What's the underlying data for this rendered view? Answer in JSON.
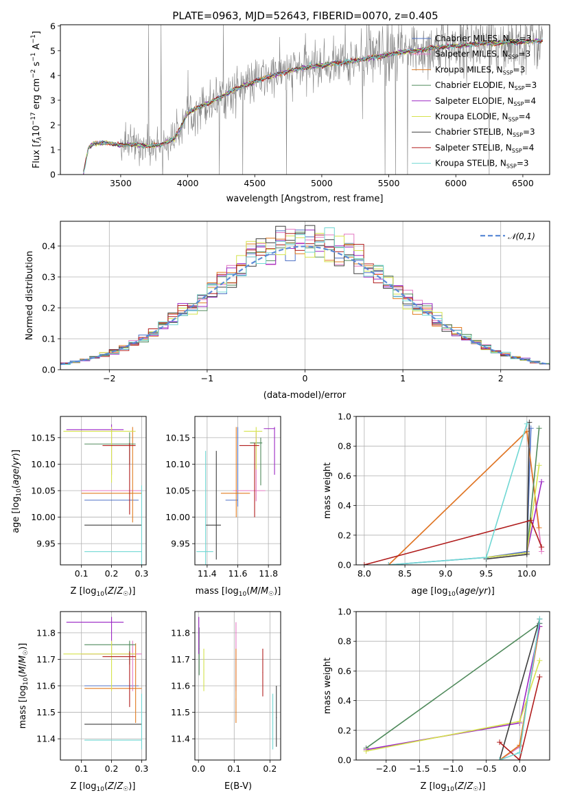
{
  "figure": {
    "title": "PLATE=0963, MJD=52643, FIBERID=0070, z=0.405"
  },
  "models": [
    {
      "name": "Chabrier MILES",
      "nssp": "3",
      "color": "#4f72c6"
    },
    {
      "name": "Salpeter MILES",
      "nssp": "3",
      "color": "#e377c2"
    },
    {
      "name": "Kroupa MILES",
      "nssp": "3",
      "color": "#e07a1f"
    },
    {
      "name": "Chabrier ELODIE",
      "nssp": "3",
      "color": "#4f8a5b"
    },
    {
      "name": "Salpeter ELODIE",
      "nssp": "4",
      "color": "#9b27c4"
    },
    {
      "name": "Kroupa ELODIE",
      "nssp": "4",
      "color": "#d4e24a"
    },
    {
      "name": "Chabrier STELIB",
      "nssp": "3",
      "color": "#3d3d3d"
    },
    {
      "name": "Salpeter STELIB",
      "nssp": "4",
      "color": "#b01c1c"
    },
    {
      "name": "Kroupa STELIB",
      "nssp": "3",
      "color": "#6fd7d3"
    }
  ],
  "chart_data": [
    {
      "id": "spectrum",
      "type": "line",
      "xlabel": "wavelength [Angstrom, rest frame]",
      "ylabel": "Flux [f_λ 10^-17 erg cm^-2 s^-1 A^-1]",
      "xlim": [
        3050,
        6700
      ],
      "ylim": [
        0,
        6.05
      ],
      "xticks": [
        3500,
        4000,
        4500,
        5000,
        5500,
        6000,
        6500
      ],
      "yticks": [
        0,
        1,
        2,
        3,
        4,
        5,
        6
      ],
      "data_color": "#808080",
      "model_continuum": {
        "x": [
          3220,
          3260,
          3300,
          3400,
          3500,
          3600,
          3700,
          3800,
          3900,
          3950,
          4000,
          4100,
          4200,
          4300,
          4400,
          4500,
          4600,
          4700,
          4800,
          4900,
          5000,
          5100,
          5200,
          5300,
          5400,
          5500,
          5600,
          5700,
          5800,
          5900,
          6000,
          6100,
          6200,
          6300,
          6400,
          6500,
          6600
        ],
        "y": [
          0,
          1.1,
          1.25,
          1.28,
          1.18,
          1.22,
          1.15,
          1.2,
          1.45,
          1.9,
          2.5,
          2.75,
          3.0,
          3.3,
          3.55,
          3.75,
          3.95,
          4.1,
          4.25,
          4.35,
          4.4,
          4.5,
          4.55,
          4.65,
          4.75,
          4.85,
          4.95,
          5.0,
          5.1,
          5.15,
          5.2,
          5.25,
          5.3,
          5.3,
          5.35,
          5.35,
          5.4
        ]
      }
    },
    {
      "id": "residuals",
      "type": "line",
      "xlabel": "(data-model)/error",
      "ylabel": "Normed distribution",
      "xlim": [
        -2.5,
        2.5
      ],
      "ylim": [
        0,
        0.48
      ],
      "xticks": [
        -2,
        -1,
        0,
        1,
        2
      ],
      "yticks": [
        0.0,
        0.1,
        0.2,
        0.3,
        0.4
      ],
      "legend": "𝒩(0,1)",
      "gaussian_color": "#5b8ad6",
      "bin_width": 0.1
    },
    {
      "id": "age-vs-Z",
      "type": "scatter",
      "xlabel": "Z [log10(Z/Z☉)]",
      "ylabel": "age  [log10(age/yr)]",
      "xlim": [
        0.03,
        0.315
      ],
      "ylim": [
        9.91,
        10.19
      ],
      "xticks": [
        0.1,
        0.2,
        0.3
      ],
      "yticks": [
        9.95,
        10.0,
        10.05,
        10.1,
        10.15
      ],
      "points": [
        {
          "model": 0,
          "x": 0.2,
          "y": 10.032,
          "xerr": [
            0.11,
            0.29
          ]
        },
        {
          "model": 1,
          "x": 0.2,
          "y": 10.05,
          "xerr": [
            0.1,
            0.3
          ]
        },
        {
          "model": 2,
          "x": 0.27,
          "y": 10.045,
          "xerr": [
            0.1,
            0.3
          ],
          "yerr": [
            9.99,
            10.17
          ]
        },
        {
          "model": 3,
          "x": 0.26,
          "y": 10.138,
          "xerr": [
            0.11,
            0.28
          ],
          "yerr": [
            10.1,
            10.16
          ]
        },
        {
          "model": 4,
          "x": 0.2,
          "y": 10.165,
          "xerr": [
            0.05,
            0.24
          ],
          "yerr": [
            10.08,
            10.175
          ]
        },
        {
          "model": 5,
          "x": 0.2,
          "y": 10.162,
          "xerr": [
            0.04,
            0.28
          ],
          "yerr": [
            10.065,
            10.17
          ]
        },
        {
          "model": 6,
          "x": 0.2,
          "y": 9.985,
          "xerr": [
            0.11,
            0.3
          ]
        },
        {
          "model": 7,
          "x": 0.26,
          "y": 10.135,
          "xerr": [
            0.17,
            0.28
          ],
          "yerr": [
            10.005,
            10.14
          ]
        },
        {
          "model": 8,
          "x": 0.3,
          "y": 9.935,
          "xerr": [
            0.11,
            0.3
          ],
          "yerr": [
            9.91,
            10.06
          ]
        }
      ]
    },
    {
      "id": "age-vs-mass",
      "type": "scatter",
      "xlabel": "mass [log10(M/M☉)]",
      "ylabel": "",
      "xlim": [
        11.32,
        11.88
      ],
      "ylim": [
        9.91,
        10.19
      ],
      "xticks": [
        11.4,
        11.6,
        11.8
      ],
      "yticks": [
        9.95,
        10.0,
        10.05,
        10.1,
        10.15
      ],
      "points": [
        {
          "model": 0,
          "x": 11.6,
          "y": 10.032,
          "xerr": [
            11.52,
            11.6
          ],
          "yerr": [
            10.02,
            10.17
          ]
        },
        {
          "model": 1,
          "x": 11.72,
          "y": 10.05,
          "xerr": [
            11.57,
            11.78
          ],
          "yerr": [
            10.03,
            10.16
          ]
        },
        {
          "model": 2,
          "x": 11.59,
          "y": 10.045,
          "xerr": [
            11.49,
            11.68
          ],
          "yerr": [
            10.0,
            10.17
          ]
        },
        {
          "model": 3,
          "x": 11.75,
          "y": 10.14,
          "xerr": [
            11.68,
            11.76
          ],
          "yerr": [
            10.06,
            10.15
          ]
        },
        {
          "model": 4,
          "x": 11.84,
          "y": 10.167,
          "xerr": [
            11.77,
            11.84
          ],
          "yerr": [
            10.08,
            10.17
          ]
        },
        {
          "model": 5,
          "x": 11.72,
          "y": 10.162,
          "xerr": [
            11.64,
            11.76
          ],
          "yerr": [
            10.09,
            10.17
          ]
        },
        {
          "model": 6,
          "x": 11.46,
          "y": 9.985,
          "xerr": [
            11.39,
            11.49
          ],
          "yerr": [
            9.92,
            10.125
          ]
        },
        {
          "model": 7,
          "x": 11.71,
          "y": 10.135,
          "xerr": [
            11.61,
            11.74
          ],
          "yerr": [
            10.0,
            10.14
          ]
        },
        {
          "model": 8,
          "x": 11.39,
          "y": 9.935,
          "xerr": [
            11.33,
            11.44
          ],
          "yerr": [
            9.91,
            10.125
          ]
        }
      ]
    },
    {
      "id": "massweight-vs-age",
      "type": "line",
      "xlabel": "age  [log10(age/yr)]",
      "ylabel": "mass weight",
      "xlim": [
        7.9,
        10.28
      ],
      "ylim": [
        0,
        1.0
      ],
      "xticks": [
        8.0,
        8.5,
        9.0,
        9.5,
        10.0
      ],
      "yticks": [
        0.0,
        0.2,
        0.4,
        0.6,
        0.8,
        1.0
      ],
      "series": [
        {
          "model": 0,
          "x": [
            8.3,
            9.5,
            10.0,
            10.05
          ],
          "y": [
            0.0,
            0.05,
            0.09,
            0.92
          ]
        },
        {
          "model": 1,
          "x": [
            8.3,
            10.0,
            10.18
          ],
          "y": [
            0.0,
            0.9,
            0.09
          ]
        },
        {
          "model": 2,
          "x": [
            8.3,
            10.0,
            10.15
          ],
          "y": [
            0.0,
            0.9,
            0.25
          ]
        },
        {
          "model": 3,
          "x": [
            9.5,
            10.0,
            10.15
          ],
          "y": [
            0.05,
            0.08,
            0.92
          ]
        },
        {
          "model": 4,
          "x": [
            9.5,
            10.0,
            10.18
          ],
          "y": [
            0.05,
            0.08,
            0.56
          ]
        },
        {
          "model": 5,
          "x": [
            9.5,
            10.0,
            10.15
          ],
          "y": [
            0.05,
            0.08,
            0.67
          ]
        },
        {
          "model": 6,
          "x": [
            9.5,
            10.0,
            10.03
          ],
          "y": [
            0.04,
            0.07,
            0.96
          ]
        },
        {
          "model": 7,
          "x": [
            8.0,
            10.05,
            10.18
          ],
          "y": [
            0.0,
            0.3,
            0.12
          ]
        },
        {
          "model": 8,
          "x": [
            8.3,
            9.5,
            10.0
          ],
          "y": [
            0.0,
            0.05,
            0.95
          ]
        }
      ]
    },
    {
      "id": "mass-vs-Z",
      "type": "scatter",
      "xlabel": "Z [log10(Z/Z☉)]",
      "ylabel": "mass [log10(M/M☉)]",
      "xlim": [
        0.03,
        0.315
      ],
      "ylim": [
        11.32,
        11.88
      ],
      "xticks": [
        0.1,
        0.2,
        0.3
      ],
      "yticks": [
        11.4,
        11.5,
        11.6,
        11.7,
        11.8
      ],
      "points": [
        {
          "model": 0,
          "x": 0.2,
          "y": 11.6,
          "xerr": [
            0.11,
            0.29
          ]
        },
        {
          "model": 1,
          "x": 0.27,
          "y": 11.72,
          "xerr": [
            0.1,
            0.3
          ],
          "yerr": [
            11.58,
            11.77
          ]
        },
        {
          "model": 2,
          "x": 0.28,
          "y": 11.59,
          "xerr": [
            0.11,
            0.3
          ],
          "yerr": [
            11.46,
            11.76
          ]
        },
        {
          "model": 3,
          "x": 0.26,
          "y": 11.755,
          "xerr": [
            0.11,
            0.28
          ],
          "yerr": [
            11.68,
            11.77
          ]
        },
        {
          "model": 4,
          "x": 0.2,
          "y": 11.84,
          "xerr": [
            0.05,
            0.24
          ],
          "yerr": [
            11.72,
            11.86
          ]
        },
        {
          "model": 5,
          "x": 0.2,
          "y": 11.72,
          "xerr": [
            0.04,
            0.28
          ],
          "yerr": [
            11.58,
            11.77
          ]
        },
        {
          "model": 6,
          "x": 0.2,
          "y": 11.455,
          "xerr": [
            0.11,
            0.3
          ]
        },
        {
          "model": 7,
          "x": 0.26,
          "y": 11.71,
          "xerr": [
            0.17,
            0.28
          ],
          "yerr": [
            11.52,
            11.73
          ]
        },
        {
          "model": 8,
          "x": 0.3,
          "y": 11.395,
          "xerr": [
            0.11,
            0.3
          ],
          "yerr": [
            11.36,
            11.57
          ]
        }
      ]
    },
    {
      "id": "mass-vs-ebv",
      "type": "scatter",
      "xlabel": "E(B-V)",
      "ylabel": "",
      "xlim": [
        -0.01,
        0.23
      ],
      "ylim": [
        11.32,
        11.88
      ],
      "xticks": [
        0.0,
        0.1,
        0.2
      ],
      "yticks": [
        11.4,
        11.5,
        11.6,
        11.7,
        11.8
      ],
      "points": [
        {
          "model": 1,
          "x": 0.105,
          "y": 11.7,
          "yerr": [
            11.58,
            11.84
          ]
        },
        {
          "model": 2,
          "x": 0.105,
          "y": 11.55,
          "yerr": [
            11.46,
            11.74
          ]
        },
        {
          "model": 3,
          "x": 0.002,
          "y": 11.74,
          "yerr": [
            11.64,
            11.82
          ]
        },
        {
          "model": 4,
          "x": 0.001,
          "y": 11.8,
          "yerr": [
            11.72,
            11.86
          ]
        },
        {
          "model": 5,
          "x": 0.015,
          "y": 11.66,
          "yerr": [
            11.58,
            11.74
          ]
        },
        {
          "model": 6,
          "x": 0.218,
          "y": 11.48,
          "yerr": [
            11.37,
            11.6
          ]
        },
        {
          "model": 7,
          "x": 0.18,
          "y": 11.65,
          "yerr": [
            11.56,
            11.74
          ]
        },
        {
          "model": 8,
          "x": 0.208,
          "y": 11.46,
          "yerr": [
            11.36,
            11.57
          ]
        }
      ]
    },
    {
      "id": "massweight-vs-Z",
      "type": "line",
      "xlabel": "Z [log10(Z/Z☉)]",
      "ylabel": "mass weight",
      "xlim": [
        -2.45,
        0.45
      ],
      "ylim": [
        0,
        1.0
      ],
      "xticks": [
        -2.0,
        -1.5,
        -1.0,
        -0.5,
        0.0
      ],
      "yticks": [
        0.0,
        0.2,
        0.4,
        0.6,
        0.8,
        1.0
      ],
      "series": [
        {
          "model": 0,
          "x": [
            -0.3,
            0.0,
            0.3
          ],
          "y": [
            0.0,
            0.09,
            0.92
          ]
        },
        {
          "model": 1,
          "x": [
            -0.3,
            0.0,
            0.3
          ],
          "y": [
            0.0,
            0.09,
            0.9
          ]
        },
        {
          "model": 2,
          "x": [
            -0.3,
            0.0,
            0.3
          ],
          "y": [
            0.0,
            0.1,
            0.9
          ]
        },
        {
          "model": 3,
          "x": [
            -2.3,
            0.3
          ],
          "y": [
            0.08,
            0.92
          ]
        },
        {
          "model": 4,
          "x": [
            -2.3,
            0.0,
            0.3
          ],
          "y": [
            0.07,
            0.25,
            0.9
          ]
        },
        {
          "model": 5,
          "x": [
            -2.3,
            0.0,
            0.3
          ],
          "y": [
            0.06,
            0.26,
            0.67
          ]
        },
        {
          "model": 6,
          "x": [
            -0.3,
            0.3
          ],
          "y": [
            0.0,
            0.95
          ]
        },
        {
          "model": 7,
          "x": [
            -0.3,
            0.0,
            0.3
          ],
          "y": [
            0.12,
            0.0,
            0.56
          ]
        },
        {
          "model": 8,
          "x": [
            -0.3,
            0.0,
            0.3
          ],
          "y": [
            0.0,
            0.05,
            0.95
          ]
        }
      ]
    }
  ]
}
